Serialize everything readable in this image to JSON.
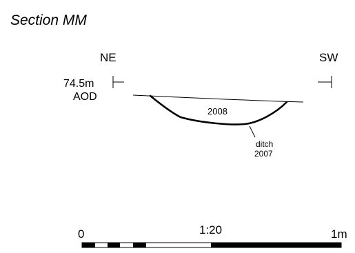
{
  "title": "Section MM",
  "orientation": {
    "left": "NE",
    "right": "SW"
  },
  "level": {
    "value": "74.5m",
    "datum": "AOD"
  },
  "contexts": {
    "fill_label": "2008",
    "cut_label_line1": "ditch",
    "cut_label_line2": "2007"
  },
  "scale": {
    "start_label": "0",
    "ratio_label": "1:20",
    "end_label": "1m"
  },
  "colors": {
    "ink": "#000000",
    "paper": "#ffffff"
  }
}
